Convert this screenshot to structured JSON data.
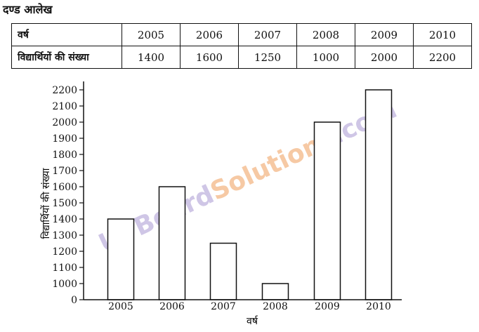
{
  "heading": "दण्ड आलेख",
  "table": {
    "row_header_year": "वर्ष",
    "row_header_count": "विद्यार्थियों की संख्या",
    "years": [
      "2005",
      "2006",
      "2007",
      "2008",
      "2009",
      "2010"
    ],
    "counts": [
      "1400",
      "1600",
      "1250",
      "1000",
      "2000",
      "2200"
    ]
  },
  "watermark": {
    "part1": "UPBoard",
    "part2": "Solutions",
    "part3": ".com",
    "color1": "#cfc6e6",
    "color2": "#f6c9a4"
  },
  "chart_data": {
    "type": "bar",
    "categories": [
      "2005",
      "2006",
      "2007",
      "2008",
      "2009",
      "2010"
    ],
    "values": [
      1400,
      1600,
      1250,
      1000,
      2000,
      2200
    ],
    "xlabel": "वर्ष",
    "ylabel": "विद्यार्थियों की संख्या",
    "yticks": [
      "0",
      "1000",
      "1100",
      "1200",
      "1300",
      "1400",
      "1500",
      "1600",
      "1700",
      "1800",
      "1900",
      "2000",
      "2100",
      "2200"
    ],
    "axis_break": "0 to 1000 compressed into first interval",
    "ylim": [
      0,
      2200
    ],
    "grid": false,
    "bar_fill": "#ffffff",
    "bar_stroke": "#111111"
  }
}
